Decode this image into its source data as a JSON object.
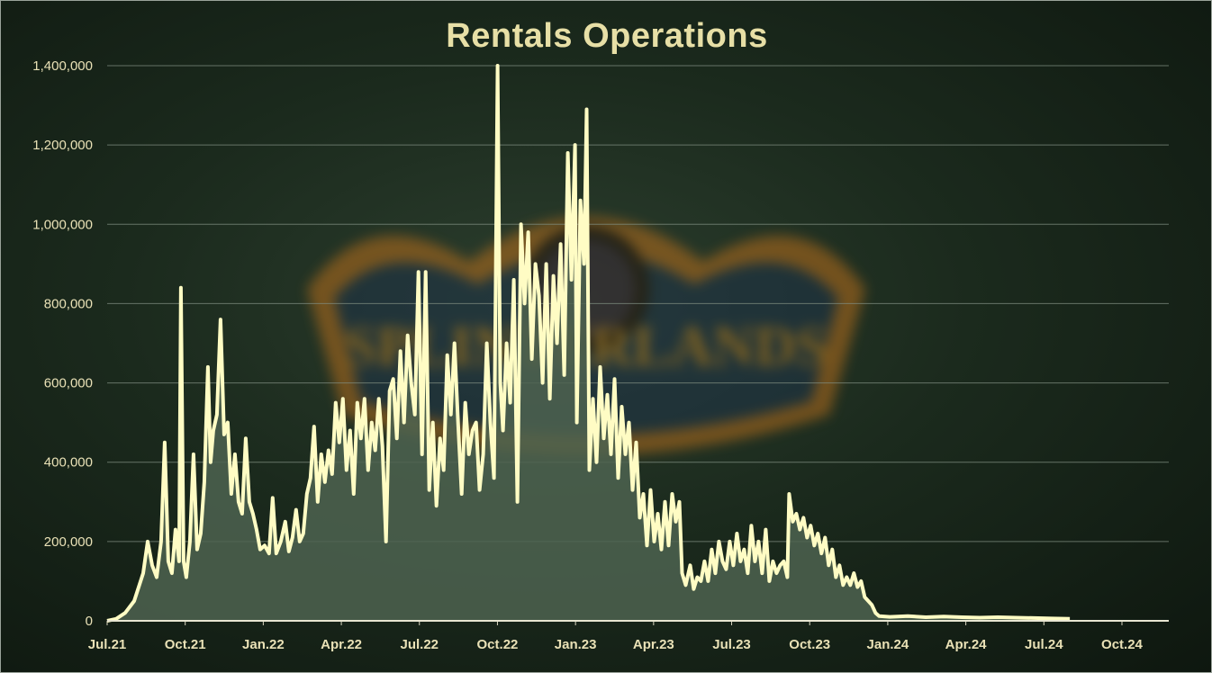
{
  "chart_data": {
    "type": "area",
    "title": "Rentals Operations",
    "xlabel": "",
    "ylabel": "",
    "x_start": "Jul.21",
    "x_end": "Dec.24",
    "ylim": [
      0,
      1400000
    ],
    "y_ticks": [
      "0",
      "200,000",
      "400,000",
      "600,000",
      "800,000",
      "1,000,000",
      "1,200,000",
      "1,400,000"
    ],
    "x_ticks": [
      "Jul.21",
      "Oct.21",
      "Jan.22",
      "Apr.22",
      "Jul.22",
      "Oct.22",
      "Jan.23",
      "Apr.23",
      "Jul.23",
      "Oct.23",
      "Jan.24",
      "Apr.24",
      "Jul.24",
      "Oct.24"
    ],
    "grid": true,
    "legend": "none",
    "line_color": "#fffcc4",
    "fill_color": "#4e6350",
    "series": [
      {
        "values": [
          [
            0,
            0
          ],
          [
            10,
            5000
          ],
          [
            20,
            20000
          ],
          [
            30,
            50000
          ],
          [
            40,
            120000
          ],
          [
            45,
            200000
          ],
          [
            50,
            140000
          ],
          [
            55,
            110000
          ],
          [
            60,
            200000
          ],
          [
            64,
            450000
          ],
          [
            68,
            150000
          ],
          [
            72,
            120000
          ],
          [
            76,
            230000
          ],
          [
            80,
            150000
          ],
          [
            82,
            840000
          ],
          [
            85,
            150000
          ],
          [
            88,
            110000
          ],
          [
            92,
            200000
          ],
          [
            96,
            420000
          ],
          [
            100,
            180000
          ],
          [
            104,
            220000
          ],
          [
            108,
            350000
          ],
          [
            112,
            640000
          ],
          [
            115,
            400000
          ],
          [
            118,
            480000
          ],
          [
            122,
            520000
          ],
          [
            126,
            760000
          ],
          [
            130,
            470000
          ],
          [
            134,
            500000
          ],
          [
            138,
            320000
          ],
          [
            142,
            420000
          ],
          [
            146,
            300000
          ],
          [
            150,
            270000
          ],
          [
            154,
            460000
          ],
          [
            158,
            300000
          ],
          [
            162,
            270000
          ],
          [
            166,
            230000
          ],
          [
            170,
            180000
          ],
          [
            175,
            190000
          ],
          [
            180,
            170000
          ],
          [
            184,
            310000
          ],
          [
            188,
            170000
          ],
          [
            193,
            200000
          ],
          [
            198,
            250000
          ],
          [
            202,
            175000
          ],
          [
            206,
            210000
          ],
          [
            210,
            280000
          ],
          [
            214,
            200000
          ],
          [
            218,
            220000
          ],
          [
            222,
            320000
          ],
          [
            226,
            360000
          ],
          [
            230,
            490000
          ],
          [
            234,
            300000
          ],
          [
            238,
            420000
          ],
          [
            242,
            350000
          ],
          [
            246,
            430000
          ],
          [
            250,
            370000
          ],
          [
            254,
            550000
          ],
          [
            258,
            450000
          ],
          [
            262,
            560000
          ],
          [
            266,
            380000
          ],
          [
            270,
            480000
          ],
          [
            274,
            320000
          ],
          [
            278,
            550000
          ],
          [
            282,
            460000
          ],
          [
            286,
            560000
          ],
          [
            290,
            380000
          ],
          [
            294,
            500000
          ],
          [
            298,
            430000
          ],
          [
            302,
            560000
          ],
          [
            306,
            440000
          ],
          [
            310,
            200000
          ],
          [
            314,
            580000
          ],
          [
            318,
            610000
          ],
          [
            322,
            460000
          ],
          [
            326,
            680000
          ],
          [
            330,
            500000
          ],
          [
            334,
            720000
          ],
          [
            338,
            600000
          ],
          [
            342,
            520000
          ],
          [
            346,
            880000
          ],
          [
            350,
            420000
          ],
          [
            354,
            880000
          ],
          [
            358,
            330000
          ],
          [
            362,
            500000
          ],
          [
            366,
            290000
          ],
          [
            370,
            460000
          ],
          [
            374,
            380000
          ],
          [
            378,
            670000
          ],
          [
            382,
            520000
          ],
          [
            386,
            700000
          ],
          [
            390,
            500000
          ],
          [
            394,
            320000
          ],
          [
            398,
            550000
          ],
          [
            402,
            420000
          ],
          [
            406,
            480000
          ],
          [
            410,
            500000
          ],
          [
            414,
            330000
          ],
          [
            418,
            420000
          ],
          [
            422,
            700000
          ],
          [
            426,
            500000
          ],
          [
            430,
            360000
          ],
          [
            434,
            1400000
          ],
          [
            437,
            600000
          ],
          [
            440,
            480000
          ],
          [
            444,
            700000
          ],
          [
            448,
            550000
          ],
          [
            452,
            860000
          ],
          [
            456,
            300000
          ],
          [
            460,
            1000000
          ],
          [
            464,
            800000
          ],
          [
            468,
            980000
          ],
          [
            472,
            660000
          ],
          [
            476,
            900000
          ],
          [
            480,
            820000
          ],
          [
            484,
            600000
          ],
          [
            488,
            900000
          ],
          [
            492,
            560000
          ],
          [
            496,
            870000
          ],
          [
            500,
            700000
          ],
          [
            504,
            950000
          ],
          [
            508,
            620000
          ],
          [
            512,
            1180000
          ],
          [
            516,
            860000
          ],
          [
            520,
            1200000
          ],
          [
            522,
            500000
          ],
          [
            526,
            1060000
          ],
          [
            530,
            900000
          ],
          [
            533,
            1290000
          ],
          [
            536,
            380000
          ],
          [
            540,
            560000
          ],
          [
            544,
            400000
          ],
          [
            548,
            640000
          ],
          [
            552,
            460000
          ],
          [
            556,
            570000
          ],
          [
            560,
            420000
          ],
          [
            564,
            610000
          ],
          [
            568,
            360000
          ],
          [
            572,
            540000
          ],
          [
            576,
            420000
          ],
          [
            580,
            500000
          ],
          [
            584,
            330000
          ],
          [
            588,
            450000
          ],
          [
            592,
            260000
          ],
          [
            596,
            320000
          ],
          [
            600,
            190000
          ],
          [
            604,
            330000
          ],
          [
            608,
            200000
          ],
          [
            612,
            270000
          ],
          [
            616,
            180000
          ],
          [
            620,
            300000
          ],
          [
            624,
            190000
          ],
          [
            628,
            320000
          ],
          [
            632,
            250000
          ],
          [
            636,
            300000
          ],
          [
            639,
            120000
          ],
          [
            643,
            90000
          ],
          [
            648,
            140000
          ],
          [
            652,
            80000
          ],
          [
            656,
            110000
          ],
          [
            660,
            100000
          ],
          [
            664,
            150000
          ],
          [
            668,
            100000
          ],
          [
            672,
            180000
          ],
          [
            676,
            120000
          ],
          [
            680,
            200000
          ],
          [
            684,
            150000
          ],
          [
            688,
            130000
          ],
          [
            692,
            200000
          ],
          [
            696,
            140000
          ],
          [
            700,
            220000
          ],
          [
            704,
            150000
          ],
          [
            708,
            180000
          ],
          [
            712,
            120000
          ],
          [
            716,
            240000
          ],
          [
            720,
            150000
          ],
          [
            724,
            200000
          ],
          [
            728,
            120000
          ],
          [
            732,
            230000
          ],
          [
            736,
            100000
          ],
          [
            740,
            150000
          ],
          [
            744,
            120000
          ],
          [
            748,
            140000
          ],
          [
            752,
            150000
          ],
          [
            756,
            110000
          ],
          [
            758,
            320000
          ],
          [
            762,
            250000
          ],
          [
            766,
            270000
          ],
          [
            770,
            230000
          ],
          [
            774,
            260000
          ],
          [
            778,
            210000
          ],
          [
            782,
            240000
          ],
          [
            786,
            190000
          ],
          [
            790,
            220000
          ],
          [
            794,
            170000
          ],
          [
            798,
            210000
          ],
          [
            802,
            140000
          ],
          [
            806,
            180000
          ],
          [
            810,
            110000
          ],
          [
            814,
            140000
          ],
          [
            818,
            90000
          ],
          [
            822,
            110000
          ],
          [
            826,
            90000
          ],
          [
            830,
            120000
          ],
          [
            834,
            85000
          ],
          [
            838,
            100000
          ],
          [
            842,
            60000
          ],
          [
            846,
            50000
          ],
          [
            850,
            40000
          ],
          [
            854,
            20000
          ],
          [
            858,
            12000
          ],
          [
            870,
            10000
          ],
          [
            890,
            12000
          ],
          [
            910,
            9000
          ],
          [
            930,
            11000
          ],
          [
            950,
            9000
          ],
          [
            970,
            8000
          ],
          [
            990,
            9000
          ],
          [
            1010,
            8000
          ],
          [
            1030,
            7000
          ],
          [
            1050,
            6000
          ],
          [
            1070,
            5000
          ]
        ]
      }
    ]
  },
  "logo": {
    "text": "SPLINTERLANDS",
    "accent_color": "#d08a1e",
    "shield_color": "#1e3348"
  }
}
